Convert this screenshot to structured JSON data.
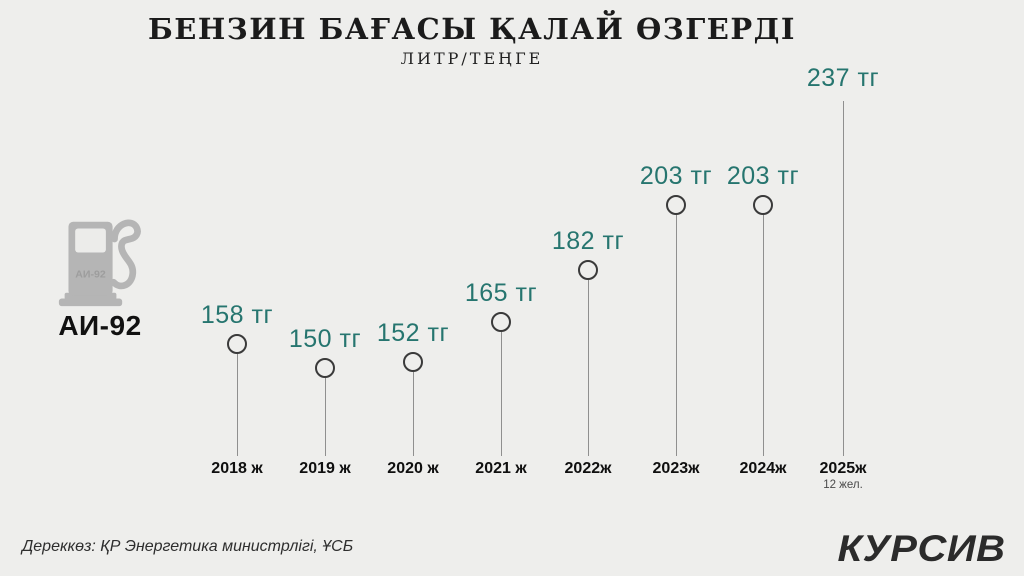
{
  "title": "БЕНЗИН БАҒАСЫ ҚАЛАЙ ӨЗГЕРДІ",
  "subtitle": "ЛИТР/ТЕҢГЕ",
  "fuel_label": "АИ-92",
  "pump_icon_text": "АИ-92",
  "source": "Дереккөз: ҚР Энергетика министрлігі, ҰСБ",
  "logo": "КУРСИВ",
  "colors": {
    "background": "#eeeeec",
    "accent_teal": "#26756f",
    "year_label": "#0f0f0f",
    "stem_gray": "#8f8f8f",
    "marker_stroke": "#3a3a3a",
    "icon_gray": "#b5b5b5"
  },
  "chart_data": {
    "type": "lollipop",
    "series_name": "АИ-92",
    "title": "БЕНЗИН БАҒАСЫ ҚАЛАЙ ӨЗГЕРДІ",
    "subtitle": "ЛИТР/ТЕҢГЕ",
    "categories": [
      "2018 ж",
      "2019 ж",
      "2020 ж",
      "2021 ж",
      "2022ж",
      "2023ж",
      "2024ж",
      "2025ж"
    ],
    "values": [
      158,
      150,
      152,
      165,
      182,
      203,
      203,
      237
    ],
    "value_suffix": " тг",
    "last_point_note": "12 жел.",
    "last_point_has_marker": false,
    "ylim": [
      120,
      250
    ],
    "grid": false,
    "legend": "none"
  }
}
